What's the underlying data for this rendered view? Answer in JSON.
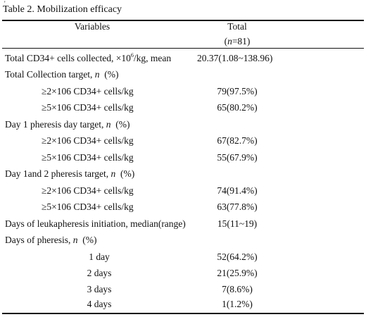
{
  "table": {
    "tick": "'",
    "caption": "Table 2. Mobilization efficacy",
    "header": {
      "variables": "Variables",
      "total": "Total",
      "n_prefix": "(",
      "n_symbol": "n",
      "n_suffix": "=81)"
    },
    "rows": [
      {
        "label_pre": "Total CD34+ cells collected, ×10",
        "label_sup": "6",
        "label_post": "/kg, mean",
        "value": "20.37(1.08~138.96)"
      },
      {
        "label": "Total Collection target, ",
        "label_n": "n",
        "label_tail": "  (%)"
      },
      {
        "label": "≥2×106 CD34+ cells/kg",
        "value": "79(97.5%)"
      },
      {
        "label": "≥5×106 CD34+ cells/kg",
        "value": "65(80.2%)"
      },
      {
        "label": "Day 1 pheresis day target, ",
        "label_n": "n",
        "label_tail": "  (%)"
      },
      {
        "label": "≥2×106 CD34+ cells/kg",
        "value": "67(82.7%)"
      },
      {
        "label": "≥5×106 CD34+ cells/kg",
        "value": "55(67.9%)"
      },
      {
        "label": "Day 1and 2 pheresis target, ",
        "label_n": "n",
        "label_tail": "  (%)"
      },
      {
        "label": "≥2×106 CD34+ cells/kg",
        "value": "74(91.4%)"
      },
      {
        "label": "≥5×106 CD34+ cells/kg",
        "value": "63(77.8%)"
      },
      {
        "label": "Days of leukapheresis initiation, median(range)",
        "value": "15(11~19)"
      },
      {
        "label": "Days of pheresis, ",
        "label_n": "n",
        "label_tail": "  (%)"
      },
      {
        "label": "1 day",
        "value": "52(64.2%)"
      },
      {
        "label": "2 days",
        "value": "21(25.9%)"
      },
      {
        "label": "3 days",
        "value": "7(8.6%)"
      },
      {
        "label": "4 days",
        "value": "1(1.2%)"
      }
    ]
  }
}
